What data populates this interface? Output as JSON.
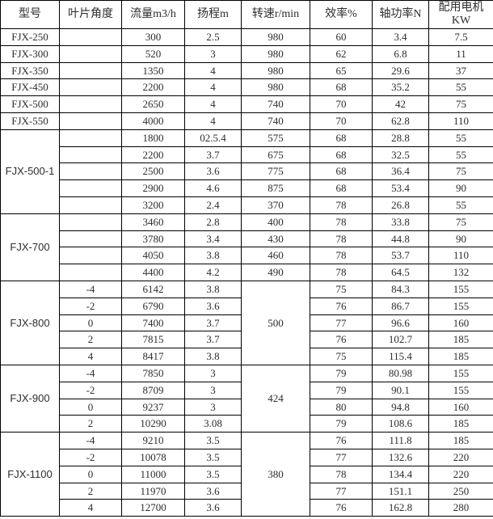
{
  "table": {
    "headers": [
      "型号",
      "叶片角度",
      "流量m3/h",
      "扬程m",
      "转速r/min",
      "效率%",
      "轴功率N",
      "配用电机\nKW"
    ],
    "colors": {
      "border": "#000000",
      "text": "#2d2d33",
      "background": "#ffffff"
    },
    "groups": [
      {
        "model": "FJX-250",
        "model_style": "plain",
        "rows": [
          {
            "angle": "",
            "flow": "300",
            "head": "2.5",
            "speed": "980",
            "eff": "60",
            "power": "3.4",
            "motor": "7.5"
          }
        ]
      },
      {
        "model": "FJX-300",
        "model_style": "plain",
        "rows": [
          {
            "angle": "",
            "flow": "520",
            "head": "3",
            "speed": "980",
            "eff": "62",
            "power": "6.8",
            "motor": "11"
          }
        ]
      },
      {
        "model": "FJX-350",
        "model_style": "plain",
        "rows": [
          {
            "angle": "",
            "flow": "1350",
            "head": "4",
            "speed": "980",
            "eff": "65",
            "power": "29.6",
            "motor": "37"
          }
        ]
      },
      {
        "model": "FJX-450",
        "model_style": "plain",
        "rows": [
          {
            "angle": "",
            "flow": "2200",
            "head": "4",
            "speed": "980",
            "eff": "68",
            "power": "35.2",
            "motor": "55"
          }
        ]
      },
      {
        "model": "FJX-500",
        "model_style": "plain",
        "rows": [
          {
            "angle": "",
            "flow": "2650",
            "head": "4",
            "speed": "740",
            "eff": "70",
            "power": "42",
            "motor": "75"
          }
        ]
      },
      {
        "model": "FJX-550",
        "model_style": "plain",
        "rows": [
          {
            "angle": "",
            "flow": "4000",
            "head": "4",
            "speed": "740",
            "eff": "70",
            "power": "62.8",
            "motor": "110"
          }
        ]
      },
      {
        "model": "FJX-500-1",
        "model_style": "group",
        "rows": [
          {
            "angle": "",
            "flow": "1800",
            "head": "02.5.4",
            "speed": "575",
            "eff": "68",
            "power": "28.8",
            "motor": "55"
          },
          {
            "angle": "",
            "flow": "2200",
            "head": "3.7",
            "speed": "675",
            "eff": "68",
            "power": "32.5",
            "motor": "55"
          },
          {
            "angle": "",
            "flow": "2500",
            "head": "3.6",
            "speed": "775",
            "eff": "68",
            "power": "36.4",
            "motor": "75"
          },
          {
            "angle": "",
            "flow": "2900",
            "head": "4.6",
            "speed": "875",
            "eff": "68",
            "power": "53.4",
            "motor": "90"
          },
          {
            "angle": "",
            "flow": "3200",
            "head": "2.4",
            "speed": "370",
            "eff": "78",
            "power": "26.8",
            "motor": "55"
          }
        ]
      },
      {
        "model": "FJX-700",
        "model_style": "group",
        "rows": [
          {
            "angle": "",
            "flow": "3460",
            "head": "2.8",
            "speed": "400",
            "eff": "78",
            "power": "33.8",
            "motor": "75"
          },
          {
            "angle": "",
            "flow": "3780",
            "head": "3.4",
            "speed": "430",
            "eff": "78",
            "power": "44.8",
            "motor": "90"
          },
          {
            "angle": "",
            "flow": "4050",
            "head": "3.8",
            "speed": "460",
            "eff": "78",
            "power": "53.7",
            "motor": "110"
          },
          {
            "angle": "",
            "flow": "4400",
            "head": "4.2",
            "speed": "490",
            "eff": "78",
            "power": "64.5",
            "motor": "132"
          }
        ]
      },
      {
        "model": "FJX-800",
        "model_style": "group",
        "speed": "500",
        "rows": [
          {
            "angle": "-4",
            "flow": "6142",
            "head": "3.8",
            "eff": "75",
            "power": "84.3",
            "motor": "155"
          },
          {
            "angle": "-2",
            "flow": "6790",
            "head": "3.6",
            "eff": "76",
            "power": "86.7",
            "motor": "155"
          },
          {
            "angle": "0",
            "flow": "7400",
            "head": "3.7",
            "eff": "77",
            "power": "96.6",
            "motor": "160"
          },
          {
            "angle": "2",
            "flow": "7815",
            "head": "3.7",
            "eff": "76",
            "power": "102.7",
            "motor": "185"
          },
          {
            "angle": "4",
            "flow": "8417",
            "head": "3.8",
            "eff": "75",
            "power": "115.4",
            "motor": "185"
          }
        ]
      },
      {
        "model": "FJX-900",
        "model_style": "group",
        "speed": "424",
        "rows": [
          {
            "angle": "-4",
            "flow": "7850",
            "head": "3",
            "eff": "79",
            "power": "80.98",
            "motor": "155"
          },
          {
            "angle": "-2",
            "flow": "8709",
            "head": "3",
            "eff": "79",
            "power": "90.1",
            "motor": "155"
          },
          {
            "angle": "0",
            "flow": "9237",
            "head": "3",
            "eff": "80",
            "power": "94.8",
            "motor": "160"
          },
          {
            "angle": "2",
            "flow": "10290",
            "head": "3.08",
            "eff": "79",
            "power": "108.6",
            "motor": "185"
          }
        ]
      },
      {
        "model": "FJX-1100",
        "model_style": "group",
        "speed": "380",
        "rows": [
          {
            "angle": "-4",
            "flow": "9210",
            "head": "3.5",
            "eff": "76",
            "power": "111.8",
            "motor": "185"
          },
          {
            "angle": "-2",
            "flow": "10078",
            "head": "3.5",
            "eff": "77",
            "power": "132.6",
            "motor": "220"
          },
          {
            "angle": "0",
            "flow": "11000",
            "head": "3.5",
            "eff": "78",
            "power": "134.4",
            "motor": "220"
          },
          {
            "angle": "2",
            "flow": "11970",
            "head": "3.6",
            "eff": "77",
            "power": "151.1",
            "motor": "250"
          },
          {
            "angle": "4",
            "flow": "12700",
            "head": "3.6",
            "eff": "76",
            "power": "162.8",
            "motor": "280"
          }
        ]
      }
    ]
  }
}
